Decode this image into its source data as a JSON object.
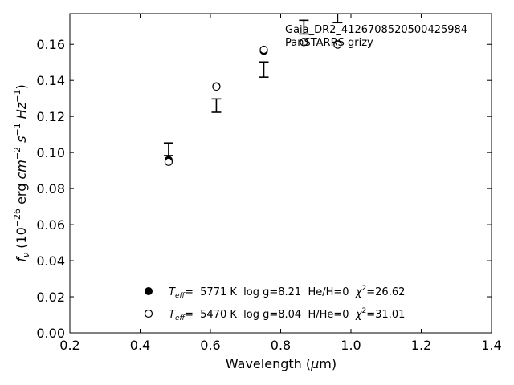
{
  "chart_data": {
    "type": "scatter",
    "xlabel": "Wavelength (μm)",
    "ylabel": "f_ν (10^-26 erg cm^-2 s^-1 Hz^-1)",
    "xlim": [
      0.2,
      1.4
    ],
    "ylim": [
      0.0,
      0.177
    ],
    "xticks": [
      0.2,
      0.4,
      0.6,
      0.8,
      1.0,
      1.2,
      1.4
    ],
    "yticks": [
      0.0,
      0.02,
      0.04,
      0.06,
      0.08,
      0.1,
      0.12,
      0.14,
      0.16
    ],
    "xtick_labels": [
      "0.2",
      "0.4",
      "0.6",
      "0.8",
      "1.0",
      "1.2",
      "1.4"
    ],
    "ytick_labels": [
      "0.00",
      "0.02",
      "0.04",
      "0.06",
      "0.08",
      "0.10",
      "0.12",
      "0.14",
      "0.16"
    ],
    "grid": false,
    "annotation": [
      "Gaia_DR2_4126708520500425984",
      "PanSTARRS grizy"
    ],
    "observed": [
      {
        "x": 0.481,
        "y": 0.1018,
        "err": 0.0035
      },
      {
        "x": 0.617,
        "y": 0.126,
        "err": 0.0037
      },
      {
        "x": 0.752,
        "y": 0.146,
        "err": 0.0042
      },
      {
        "x": 0.866,
        "y": 0.1695,
        "err": 0.0038
      },
      {
        "x": 0.962,
        "y": 0.176,
        "err": 0.004
      }
    ],
    "series": [
      {
        "marker": "filled-circle",
        "x": [
          0.481,
          0.617,
          0.752,
          0.866,
          0.962
        ],
        "y": [
          0.0958,
          0.1367,
          0.1564,
          0.1614,
          0.16
        ]
      },
      {
        "marker": "open-circle",
        "x": [
          0.481,
          0.617,
          0.752,
          0.866,
          0.962
        ],
        "y": [
          0.0948,
          0.1365,
          0.157,
          0.1612,
          0.1598
        ]
      }
    ],
    "legend": [
      {
        "marker": "filled-circle",
        "prefix": "T",
        "sub": "eff",
        "text": "=  5771 K  log g=8.21  He/H=0  ",
        "chi": "χ",
        "sup": "2",
        "chi_value": "=26.62"
      },
      {
        "marker": "open-circle",
        "prefix": "T",
        "sub": "eff",
        "text": "=  5470 K  log g=8.04  H/He=0  ",
        "chi": "χ",
        "sup": "2",
        "chi_value": "=31.01"
      }
    ],
    "legend_position": "lower-center"
  }
}
